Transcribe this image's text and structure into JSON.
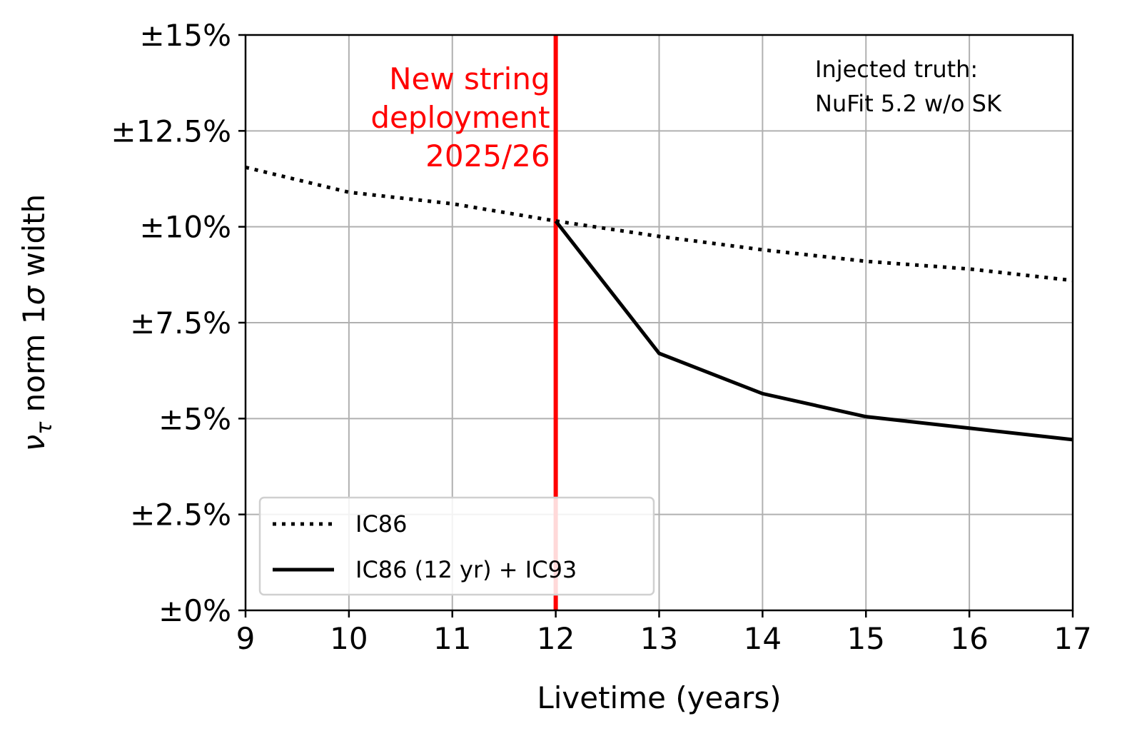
{
  "chart_data": {
    "type": "line",
    "xlabel": "Livetime (years)",
    "ylabel_main": "ν",
    "ylabel_sub": "τ",
    "ylabel_rest": " norm 1",
    "ylabel_sigma": "σ",
    "ylabel_end": " width",
    "xlim": [
      9,
      17
    ],
    "ylim": [
      0,
      15
    ],
    "x_ticks": [
      9,
      10,
      11,
      12,
      13,
      14,
      15,
      16,
      17
    ],
    "x_tick_labels": [
      "9",
      "10",
      "11",
      "12",
      "13",
      "14",
      "15",
      "16",
      "17"
    ],
    "y_ticks": [
      0,
      2.5,
      5,
      7.5,
      10,
      12.5,
      15
    ],
    "y_tick_labels": [
      "±0%",
      "±2.5%",
      "±5%",
      "±7.5%",
      "±10%",
      "±12.5%",
      "±15%"
    ],
    "grid": true,
    "series": [
      {
        "name": "IC86",
        "style": "dotted",
        "color": "#000000",
        "x": [
          9,
          10,
          11,
          12,
          13,
          14,
          15,
          16,
          17
        ],
        "values": [
          11.55,
          10.9,
          10.6,
          10.15,
          9.75,
          9.4,
          9.1,
          8.9,
          8.6
        ]
      },
      {
        "name": "IC86 (12 yr) + IC93",
        "style": "solid",
        "color": "#000000",
        "x": [
          12,
          13,
          14,
          15,
          16,
          17
        ],
        "values": [
          10.15,
          6.7,
          5.65,
          5.05,
          4.75,
          4.45
        ]
      }
    ],
    "vertical_line": {
      "x": 12,
      "color": "#ff0000",
      "label_lines": [
        "New string",
        "deployment",
        "2025/26"
      ]
    },
    "annotation_lines": [
      "Injected truth:",
      "NuFit 5.2 w/o SK"
    ],
    "legend_position": "lower-left"
  }
}
